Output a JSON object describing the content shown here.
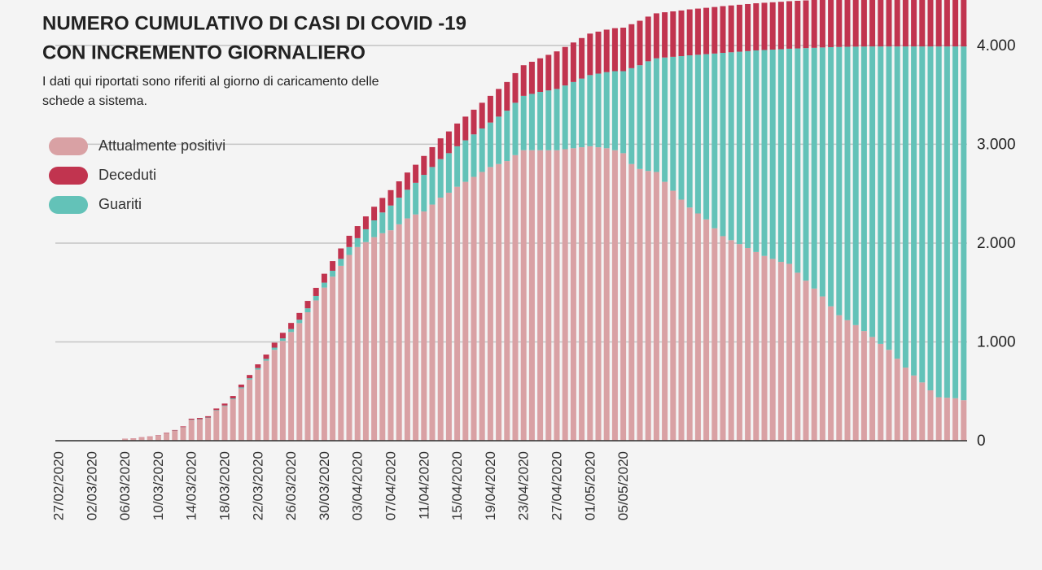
{
  "chart_data": {
    "type": "stacked-bar",
    "title": [
      "NUMERO CUMULATIVO DI CASI DI COVID -19",
      "CON INCREMENTO GIORNALIERO"
    ],
    "subtitle": [
      "I dati qui riportati sono riferiti al giorno di caricamento delle",
      "schede a sistema."
    ],
    "categories": [
      "27/02/2020",
      null,
      null,
      null,
      "02/03/2020",
      null,
      null,
      null,
      "06/03/2020",
      null,
      null,
      null,
      "10/03/2020",
      null,
      null,
      null,
      "14/03/2020",
      null,
      null,
      null,
      "18/03/2020",
      null,
      null,
      null,
      "22/03/2020",
      null,
      null,
      null,
      "26/03/2020",
      null,
      null,
      null,
      "30/03/2020",
      null,
      null,
      null,
      "03/04/2020",
      null,
      null,
      null,
      "07/04/2020",
      null,
      null,
      null,
      "11/04/2020",
      null,
      null,
      null,
      "15/04/2020",
      null,
      null,
      null,
      "19/04/2020",
      null,
      null,
      null,
      "23/04/2020",
      null,
      null,
      null,
      "27/04/2020",
      null,
      null,
      null,
      "01/05/2020",
      null,
      null,
      null,
      "05/05/2020",
      null,
      null,
      null,
      null,
      null,
      null,
      null,
      null,
      null,
      null,
      null,
      null,
      null,
      null,
      null,
      null,
      null,
      null,
      null,
      null,
      null,
      null,
      null,
      null,
      null,
      null,
      null,
      null,
      null,
      null,
      null,
      null,
      null,
      null,
      null,
      null,
      null,
      null,
      null,
      null,
      null
    ],
    "series": [
      {
        "name": "Attualmente positivi",
        "color": "#d9a1a4",
        "values": [
          0,
          0,
          0,
          0,
          0,
          0,
          0,
          0,
          18,
          22,
          32,
          40,
          50,
          75,
          100,
          135,
          210,
          215,
          230,
          305,
          350,
          420,
          530,
          620,
          720,
          810,
          920,
          1010,
          1100,
          1190,
          1300,
          1420,
          1550,
          1660,
          1770,
          1880,
          1960,
          2010,
          2060,
          2100,
          2130,
          2190,
          2250,
          2290,
          2320,
          2390,
          2460,
          2510,
          2570,
          2620,
          2670,
          2720,
          2770,
          2800,
          2830,
          2890,
          2940,
          2940,
          2940,
          2940,
          2940,
          2950,
          2960,
          2970,
          2980,
          2970,
          2960,
          2940,
          2910,
          2800,
          2750,
          2730,
          2720,
          2620,
          2530,
          2440,
          2360,
          2300,
          2240,
          2150,
          2070,
          2030,
          1990,
          1950,
          1910,
          1870,
          1840,
          1810,
          1790,
          1700,
          1620,
          1540,
          1460,
          1360,
          1270,
          1220,
          1170,
          1110,
          1050,
          980,
          920,
          830,
          740,
          660,
          590,
          510,
          440,
          435,
          430,
          410
        ]
      },
      {
        "name": "Deceduti",
        "color": "#c1344f",
        "values": [
          0,
          0,
          0,
          0,
          0,
          0,
          0,
          0,
          2,
          2,
          3,
          3,
          4,
          5,
          6,
          8,
          10,
          12,
          14,
          16,
          20,
          24,
          28,
          33,
          38,
          44,
          50,
          56,
          62,
          68,
          75,
          82,
          90,
          98,
          106,
          114,
          122,
          130,
          138,
          147,
          156,
          165,
          174,
          183,
          192,
          201,
          210,
          220,
          230,
          240,
          250,
          260,
          270,
          280,
          290,
          300,
          310,
          325,
          340,
          360,
          380,
          390,
          400,
          410,
          420,
          425,
          430,
          435,
          440,
          445,
          450,
          452,
          455,
          458,
          460,
          462,
          465,
          467,
          469,
          471,
          473,
          474,
          475,
          476,
          477,
          478,
          479,
          480,
          481,
          482,
          483,
          484,
          485,
          486,
          487,
          488,
          489,
          490,
          491,
          492,
          493,
          494,
          495,
          496,
          497,
          498,
          499,
          500,
          501,
          502
        ]
      },
      {
        "name": "Guariti",
        "color": "#63c2b8",
        "values": [
          0,
          0,
          0,
          0,
          0,
          0,
          0,
          0,
          0,
          0,
          0,
          0,
          1,
          1,
          2,
          2,
          3,
          3,
          4,
          5,
          6,
          8,
          10,
          12,
          15,
          18,
          22,
          26,
          30,
          35,
          40,
          45,
          50,
          60,
          70,
          80,
          90,
          130,
          170,
          210,
          250,
          270,
          290,
          320,
          370,
          380,
          390,
          400,
          410,
          420,
          430,
          440,
          450,
          480,
          510,
          530,
          550,
          570,
          590,
          605,
          620,
          645,
          670,
          695,
          720,
          745,
          770,
          800,
          830,
          970,
          1050,
          1110,
          1150,
          1258,
          1355,
          1452,
          1540,
          1606,
          1672,
          1768,
          1855,
          1901,
          1947,
          1993,
          2040,
          2084,
          2118,
          2152,
          2177,
          2270,
          2353,
          2436,
          2520,
          2623,
          2715,
          2767,
          2818,
          2879,
          2940,
          3010,
          3070,
          3160,
          3250,
          3330,
          3400,
          3480,
          3550,
          3555,
          3560,
          3580
        ]
      }
    ],
    "ylim": [
      0,
      4460
    ],
    "yticks": [
      0,
      {
        "value": 1000,
        "label": "1.000"
      },
      {
        "value": 2000,
        "label": "2.000"
      },
      {
        "value": 3000,
        "label": "3.000"
      },
      {
        "value": 4000,
        "label": "4.000"
      }
    ],
    "grid": true,
    "legend": "upper left"
  }
}
